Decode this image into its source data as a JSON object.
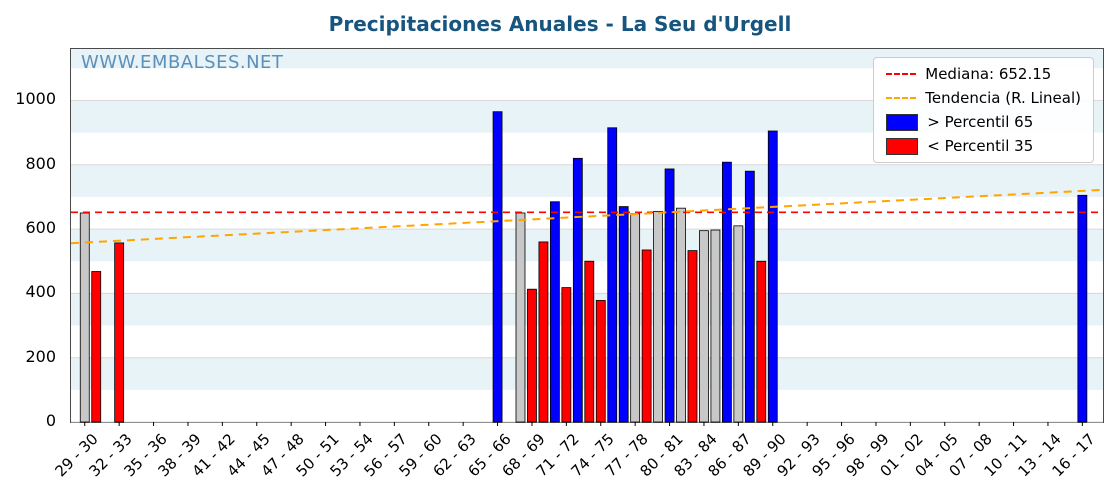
{
  "chart_data": {
    "type": "bar",
    "title": "Precipitaciones Anuales - La Seu d'Urgell",
    "watermark": "WWW.EMBALSES.NET",
    "xlabel": "",
    "ylabel": "",
    "ylim": [
      0,
      1160
    ],
    "y_ticks": [
      0,
      200,
      400,
      600,
      800,
      1000
    ],
    "x_tick_labels": [
      "29 - 30",
      "32 - 33",
      "35 - 36",
      "38 - 39",
      "41 - 42",
      "44 - 45",
      "47 - 48",
      "50 - 51",
      "53 - 54",
      "56 - 57",
      "59 - 60",
      "62 - 63",
      "65 - 66",
      "68 - 69",
      "71 - 72",
      "74 - 75",
      "77 - 78",
      "80 - 81",
      "83 - 84",
      "86 - 87",
      "89 - 90",
      "92 - 93",
      "95 - 96",
      "98 - 99",
      "01 - 02",
      "04 - 05",
      "07 - 08",
      "10 - 11",
      "13 - 14",
      "16 - 17"
    ],
    "x_start_year": 1929,
    "median": {
      "value": 652.15,
      "label": "Mediana: 652.15",
      "color": "#ff0000"
    },
    "trend": {
      "label": "Tendencia (R. Lineal)",
      "color": "#ffa500",
      "start_value": 556,
      "end_value": 722
    },
    "legend": [
      {
        "swatch": "line",
        "color": "#ff0000",
        "label": "Mediana: 652.15"
      },
      {
        "swatch": "line",
        "color": "#ffa500",
        "label": "Tendencia (R. Lineal)"
      },
      {
        "swatch": "patch",
        "color": "#0000ff",
        "label": "> Percentil 65"
      },
      {
        "swatch": "patch",
        "color": "#ff0000",
        "label": "< Percentil 35"
      }
    ],
    "bar_colors": {
      "p65": "#0000ff",
      "p35": "#ff0000",
      "mid": "#c8c8c8"
    },
    "stripe_color": "#e8f3f8",
    "bars": [
      {
        "year": 1929,
        "label": "29 - 30",
        "value": 650,
        "cat": "mid"
      },
      {
        "year": 1930,
        "label": "30 - 31",
        "value": 468,
        "cat": "p35"
      },
      {
        "year": 1932,
        "label": "32 - 33",
        "value": 557,
        "cat": "p35"
      },
      {
        "year": 1965,
        "label": "65 - 66",
        "value": 965,
        "cat": "p65"
      },
      {
        "year": 1967,
        "label": "67 - 68",
        "value": 650,
        "cat": "mid"
      },
      {
        "year": 1968,
        "label": "68 - 69",
        "value": 413,
        "cat": "p35"
      },
      {
        "year": 1969,
        "label": "69 - 70",
        "value": 560,
        "cat": "p35"
      },
      {
        "year": 1970,
        "label": "70 - 71",
        "value": 685,
        "cat": "p65"
      },
      {
        "year": 1971,
        "label": "71 - 72",
        "value": 418,
        "cat": "p35"
      },
      {
        "year": 1972,
        "label": "72 - 73",
        "value": 820,
        "cat": "p65"
      },
      {
        "year": 1973,
        "label": "73 - 74",
        "value": 500,
        "cat": "p35"
      },
      {
        "year": 1974,
        "label": "74 - 75",
        "value": 378,
        "cat": "p35"
      },
      {
        "year": 1975,
        "label": "75 - 76",
        "value": 915,
        "cat": "p65"
      },
      {
        "year": 1976,
        "label": "76 - 77",
        "value": 670,
        "cat": "p65"
      },
      {
        "year": 1977,
        "label": "77 - 78",
        "value": 648,
        "cat": "mid"
      },
      {
        "year": 1978,
        "label": "78 - 79",
        "value": 535,
        "cat": "p35"
      },
      {
        "year": 1979,
        "label": "79 - 80",
        "value": 655,
        "cat": "mid"
      },
      {
        "year": 1980,
        "label": "80 - 81",
        "value": 787,
        "cat": "p65"
      },
      {
        "year": 1981,
        "label": "81 - 82",
        "value": 665,
        "cat": "mid"
      },
      {
        "year": 1982,
        "label": "82 - 83",
        "value": 533,
        "cat": "p35"
      },
      {
        "year": 1983,
        "label": "83 - 84",
        "value": 595,
        "cat": "mid"
      },
      {
        "year": 1984,
        "label": "84 - 85",
        "value": 597,
        "cat": "mid"
      },
      {
        "year": 1985,
        "label": "85 - 86",
        "value": 808,
        "cat": "p65"
      },
      {
        "year": 1986,
        "label": "86 - 87",
        "value": 610,
        "cat": "mid"
      },
      {
        "year": 1987,
        "label": "87 - 88",
        "value": 780,
        "cat": "p65"
      },
      {
        "year": 1988,
        "label": "88 - 89",
        "value": 500,
        "cat": "p35"
      },
      {
        "year": 1989,
        "label": "89 - 90",
        "value": 905,
        "cat": "p65"
      },
      {
        "year": 2016,
        "label": "16 - 17",
        "value": 705,
        "cat": "p65"
      }
    ]
  }
}
